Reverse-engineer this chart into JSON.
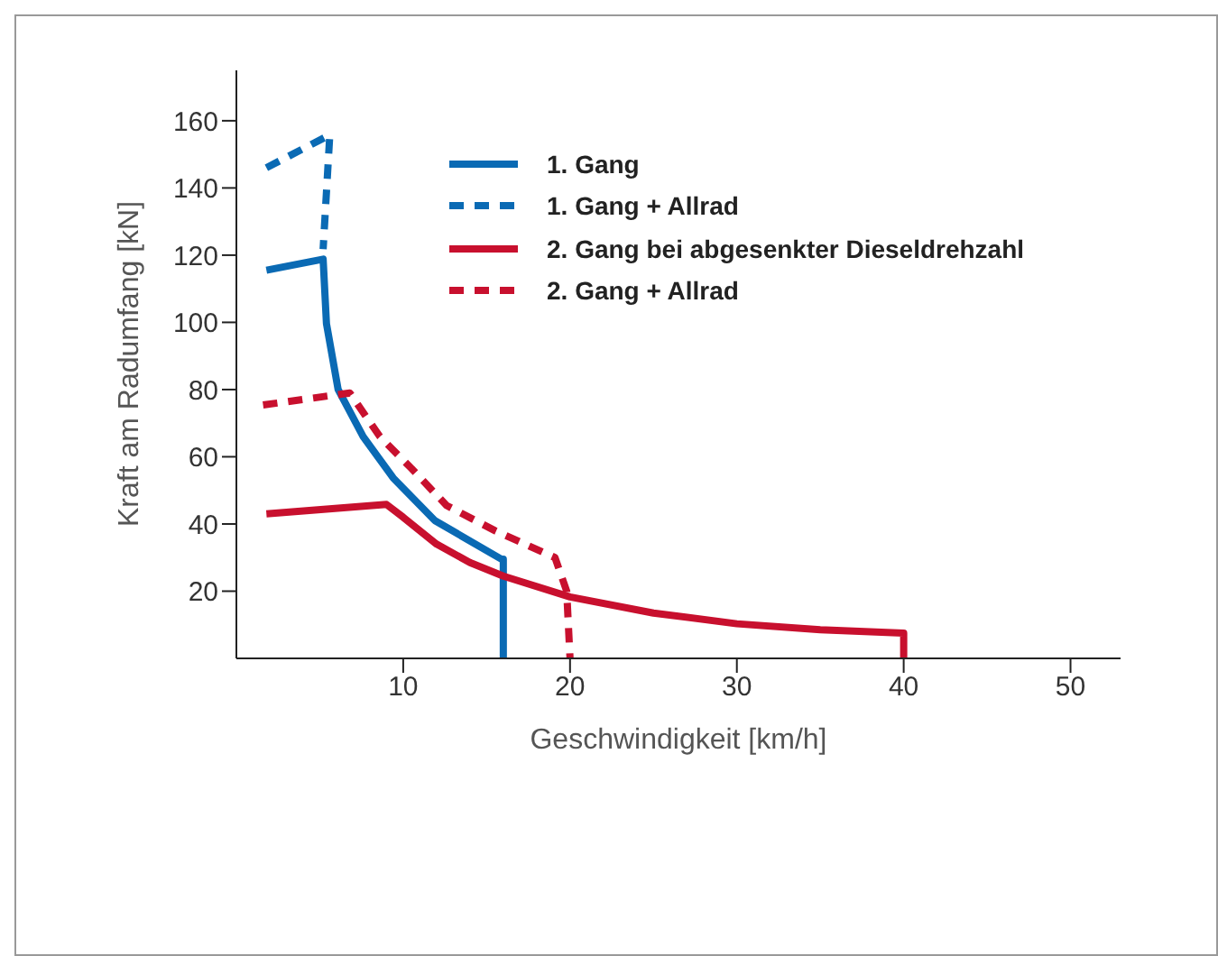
{
  "chart_data": {
    "type": "line",
    "xlabel": "Geschwindigkeit [km/h]",
    "ylabel": "Kraft am Radumfang [kN]",
    "xlim": [
      0,
      53
    ],
    "ylim": [
      0,
      175
    ],
    "xticks": [
      10,
      20,
      30,
      40,
      50
    ],
    "yticks": [
      20,
      40,
      60,
      80,
      100,
      120,
      140,
      160
    ],
    "legend": "top right",
    "marker": "none",
    "series": [
      {
        "name": "1. Gang",
        "color": "#0a6ab4",
        "line_style": "solid",
        "x": [
          1.8,
          5.2,
          5.4,
          6.1,
          7.6,
          9.4,
          11.9,
          15.9,
          16,
          16
        ],
        "values": [
          115.5,
          118.8,
          99.6,
          80,
          66,
          53.7,
          41,
          29.5,
          29.5,
          0
        ]
      },
      {
        "name": "1. Gang + Allrad",
        "color": "#0a6ab4",
        "line_style": "dashed",
        "x": [
          1.8,
          5.6,
          5.2
        ],
        "values": [
          146,
          155.8,
          121.8
        ]
      },
      {
        "name": "2. Gang bei abgesenkter Dieseldrehzahl",
        "color": "#c8102e",
        "line_style": "solid",
        "x": [
          1.8,
          9,
          10,
          12,
          14,
          16,
          20,
          25,
          30,
          35,
          40,
          40
        ],
        "values": [
          43,
          45.8,
          42,
          34,
          28.5,
          24.5,
          18.3,
          13.5,
          10.3,
          8.5,
          7.5,
          0
        ]
      },
      {
        "name": "2. Gang + Allrad",
        "color": "#c8102e",
        "line_style": "dashed",
        "x": [
          1.6,
          6.8,
          8.6,
          10.5,
          12.6,
          15.5,
          19.1,
          19.8,
          20
        ],
        "values": [
          75.4,
          79,
          66,
          56.5,
          45.5,
          38,
          30,
          20,
          0
        ]
      }
    ]
  }
}
